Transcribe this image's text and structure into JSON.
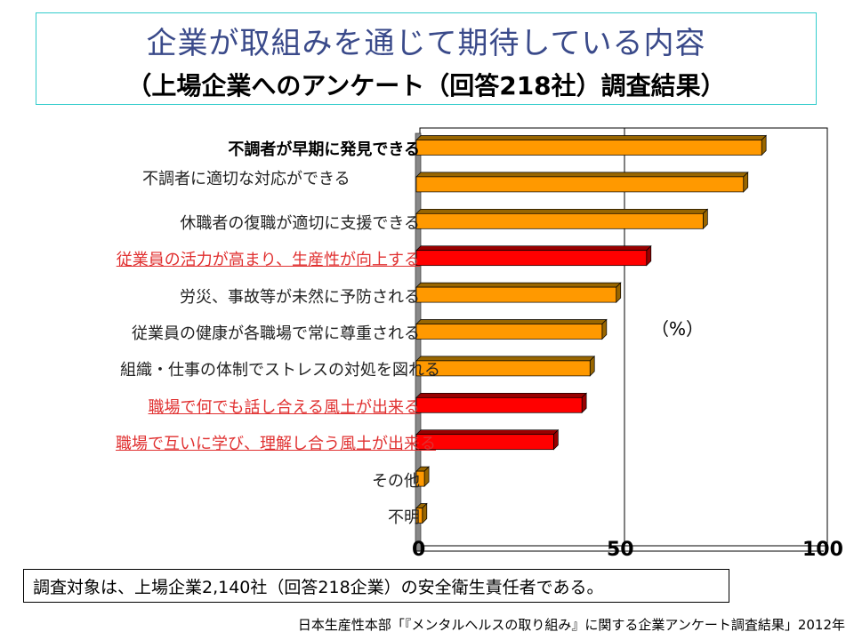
{
  "title": {
    "main": "企業が取組みを通じて期待している内容",
    "sub": "（上場企業へのアンケート（回答218社）調査結果）"
  },
  "chart_data": {
    "type": "bar",
    "orientation": "horizontal",
    "unit_label": "（%）",
    "xlim": [
      0,
      100
    ],
    "xticks": [
      "0",
      "50",
      "100"
    ],
    "categories": [
      "不調者が早期に発見できる",
      "不調者に適切な対応ができる",
      "休職者の復職が適切に支援できる",
      "従業員の活力が高まり、生産性が向上する",
      "労災、事故等が未然に予防される",
      "従業員の健康が各職場で常に尊重される",
      "組織・仕事の体制でストレスの対処を図れる",
      "職場で何でも話し合える風土が出来る",
      "職場で互いに学び、理解し合う風土が出来る",
      "その他",
      "不明"
    ],
    "values": [
      85.5,
      81,
      71,
      57,
      49.5,
      46,
      43,
      41,
      34,
      2,
      1.5
    ],
    "highlight": [
      false,
      false,
      false,
      true,
      false,
      false,
      false,
      true,
      true,
      false,
      false
    ],
    "colors": {
      "normal": "#ff9900",
      "normal_side": "#996600",
      "highlight": "#ff0000",
      "highlight_side": "#990000"
    }
  },
  "note": "調査対象は、上場企業2,140社（回答218企業）の安全衛生責任者である。",
  "source": "日本生産性本部「『メンタルヘルスの取り組み』に関する企業アンケート調査結果」2012年"
}
